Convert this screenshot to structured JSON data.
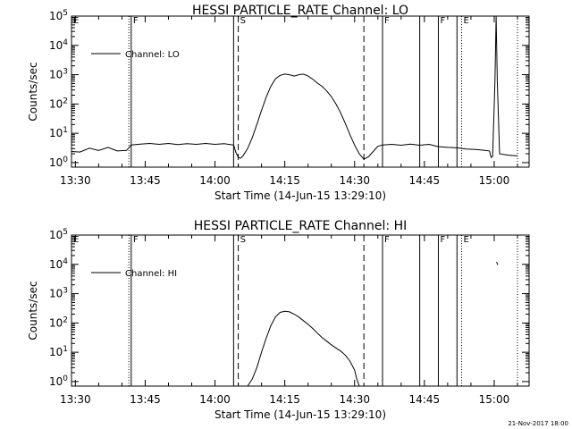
{
  "footer": {
    "timestamp": "21-Nov-2017 18:00"
  },
  "chart_data": [
    {
      "type": "line",
      "title": "HESSI PARTICLE_RATE Channel: LO",
      "xlabel": "Start Time (14-Jun-15 13:29:10)",
      "ylabel": "Counts/sec",
      "yscale": "log",
      "ylim": [
        0.7,
        100000
      ],
      "xlim": [
        "13:29:10",
        "15:07:30"
      ],
      "x_ticks": [
        "13:30",
        "13:45",
        "14:00",
        "14:15",
        "14:30",
        "14:45",
        "15:00"
      ],
      "y_ticks": [
        "10^0",
        "10^1",
        "10^2",
        "10^3",
        "10^4",
        "10^5"
      ],
      "grid": false,
      "legend": {
        "position": "top-left",
        "entries": [
          "Channel: LO"
        ]
      },
      "series": [
        {
          "name": "Channel: LO",
          "segments": [
            [
              [
                "13:29:10",
                2.4
              ],
              [
                "13:31",
                2.3
              ],
              [
                "13:33",
                3.1
              ],
              [
                "13:35",
                2.6
              ],
              [
                "13:37",
                3.3
              ],
              [
                "13:39",
                2.5
              ],
              [
                "13:41",
                2.6
              ],
              [
                "13:42",
                4.0
              ],
              [
                "13:44",
                4.3
              ],
              [
                "13:46",
                4.5
              ],
              [
                "13:48",
                4.2
              ],
              [
                "13:50",
                4.5
              ],
              [
                "13:52",
                4.1
              ],
              [
                "13:54",
                4.4
              ],
              [
                "13:56",
                4.2
              ],
              [
                "13:58",
                4.5
              ],
              [
                "14:00",
                4.2
              ],
              [
                "14:02",
                4.4
              ],
              [
                "14:04",
                4.0
              ]
            ],
            [
              [
                "14:04",
                4.0
              ],
              [
                "14:04:30",
                2.2
              ],
              [
                "14:05",
                1.5
              ],
              [
                "14:05:30",
                1.4
              ],
              [
                "14:06",
                1.7
              ],
              [
                "14:07",
                3.0
              ],
              [
                "14:08",
                7
              ],
              [
                "14:09",
                20
              ],
              [
                "14:10",
                60
              ],
              [
                "14:11",
                170
              ],
              [
                "14:12",
                400
              ],
              [
                "14:13",
                720
              ],
              [
                "14:14",
                950
              ],
              [
                "14:15",
                1050
              ],
              [
                "14:16",
                1000
              ],
              [
                "14:17",
                900
              ],
              [
                "14:18",
                1000
              ],
              [
                "14:19",
                1050
              ],
              [
                "14:20",
                900
              ],
              [
                "14:21",
                700
              ],
              [
                "14:22",
                520
              ],
              [
                "14:23",
                400
              ],
              [
                "14:24",
                280
              ],
              [
                "14:25",
                180
              ],
              [
                "14:26",
                100
              ],
              [
                "14:27",
                50
              ],
              [
                "14:28",
                22
              ],
              [
                "14:29",
                9
              ],
              [
                "14:30",
                4
              ],
              [
                "14:31",
                2.0
              ],
              [
                "14:32",
                1.3
              ],
              [
                "14:33",
                1.6
              ],
              [
                "14:34",
                2.4
              ],
              [
                "14:35",
                3.6
              ],
              [
                "14:36",
                4.0
              ]
            ],
            [
              [
                "14:36",
                4.0
              ],
              [
                "14:38",
                4.2
              ],
              [
                "14:40",
                3.9
              ],
              [
                "14:42",
                4.3
              ],
              [
                "14:44",
                3.9
              ],
              [
                "14:46",
                4.2
              ],
              [
                "14:48",
                3.5
              ],
              [
                "14:50",
                3.3
              ],
              [
                "14:52",
                3.2
              ],
              [
                "14:54",
                2.9
              ],
              [
                "14:56",
                2.8
              ],
              [
                "14:58",
                2.6
              ],
              [
                "14:59",
                2.5
              ],
              [
                "14:59:20",
                1.5
              ],
              [
                "14:59:40",
                1.6
              ]
            ],
            [
              [
                "14:59:40",
                1.6
              ],
              [
                "15:00:10",
                600
              ],
              [
                "15:00:25",
                100000
              ],
              [
                "15:00:40",
                600
              ],
              [
                "15:01:10",
                2.0
              ],
              [
                "15:03",
                1.8
              ],
              [
                "15:05",
                1.7
              ]
            ]
          ]
        }
      ],
      "markers": [
        {
          "t": "13:29:10",
          "label": "E",
          "style": "none"
        },
        {
          "t": "13:41:30",
          "label": "",
          "style": "dotted"
        },
        {
          "t": "13:42",
          "label": "F",
          "style": "solid"
        },
        {
          "t": "14:04",
          "label": "",
          "style": "solid"
        },
        {
          "t": "14:05",
          "label": "S",
          "style": "dashed"
        },
        {
          "t": "14:32",
          "label": "",
          "style": "dashed"
        },
        {
          "t": "14:36",
          "label": "F",
          "style": "solid"
        },
        {
          "t": "14:44",
          "label": "",
          "style": "solid"
        },
        {
          "t": "14:48",
          "label": "F",
          "style": "solid"
        },
        {
          "t": "14:52",
          "label": "",
          "style": "solid"
        },
        {
          "t": "14:53",
          "label": "E",
          "style": "dotted"
        },
        {
          "t": "15:05",
          "label": "",
          "style": "dotted"
        }
      ]
    },
    {
      "type": "line",
      "title": "HESSI PARTICLE_RATE Channel: HI",
      "xlabel": "Start Time (14-Jun-15 13:29:10)",
      "ylabel": "Counts/sec",
      "yscale": "log",
      "ylim": [
        0.7,
        100000
      ],
      "xlim": [
        "13:29:10",
        "15:07:30"
      ],
      "x_ticks": [
        "13:30",
        "13:45",
        "14:00",
        "14:15",
        "14:30",
        "14:45",
        "15:00"
      ],
      "y_ticks": [
        "10^0",
        "10^1",
        "10^2",
        "10^3",
        "10^4",
        "10^5"
      ],
      "grid": false,
      "legend": {
        "position": "top-left",
        "entries": [
          "Channel: HI"
        ]
      },
      "series": [
        {
          "name": "Channel: HI",
          "segments": [
            [
              [
                "14:07",
                0.7
              ],
              [
                "14:08",
                1.2
              ],
              [
                "14:09",
                3
              ],
              [
                "14:10",
                10
              ],
              [
                "14:11",
                30
              ],
              [
                "14:12",
                80
              ],
              [
                "14:13",
                160
              ],
              [
                "14:14",
                230
              ],
              [
                "14:15",
                250
              ],
              [
                "14:16",
                240
              ],
              [
                "14:17",
                200
              ],
              [
                "14:18",
                160
              ],
              [
                "14:19",
                120
              ],
              [
                "14:20",
                90
              ],
              [
                "14:21",
                65
              ],
              [
                "14:22",
                45
              ],
              [
                "14:23",
                32
              ],
              [
                "14:24",
                24
              ],
              [
                "14:25",
                18
              ],
              [
                "14:26",
                14
              ],
              [
                "14:27",
                11
              ],
              [
                "14:28",
                8
              ],
              [
                "14:29",
                5
              ],
              [
                "14:30",
                2.5
              ],
              [
                "14:30:30",
                1.2
              ],
              [
                "14:31",
                0.7
              ]
            ],
            [
              [
                "15:00:30",
                12000
              ],
              [
                "15:00:45",
                9500
              ]
            ]
          ]
        }
      ],
      "markers": [
        {
          "t": "13:29:10",
          "label": "E",
          "style": "none"
        },
        {
          "t": "13:41:30",
          "label": "",
          "style": "dotted"
        },
        {
          "t": "13:42",
          "label": "F",
          "style": "solid"
        },
        {
          "t": "14:04",
          "label": "",
          "style": "solid"
        },
        {
          "t": "14:05",
          "label": "S",
          "style": "dashed"
        },
        {
          "t": "14:32",
          "label": "",
          "style": "dashed"
        },
        {
          "t": "14:36",
          "label": "F",
          "style": "solid"
        },
        {
          "t": "14:44",
          "label": "",
          "style": "solid"
        },
        {
          "t": "14:48",
          "label": "F",
          "style": "solid"
        },
        {
          "t": "14:52",
          "label": "",
          "style": "solid"
        },
        {
          "t": "14:53",
          "label": "E",
          "style": "dotted"
        },
        {
          "t": "15:05",
          "label": "",
          "style": "dotted"
        }
      ]
    }
  ]
}
